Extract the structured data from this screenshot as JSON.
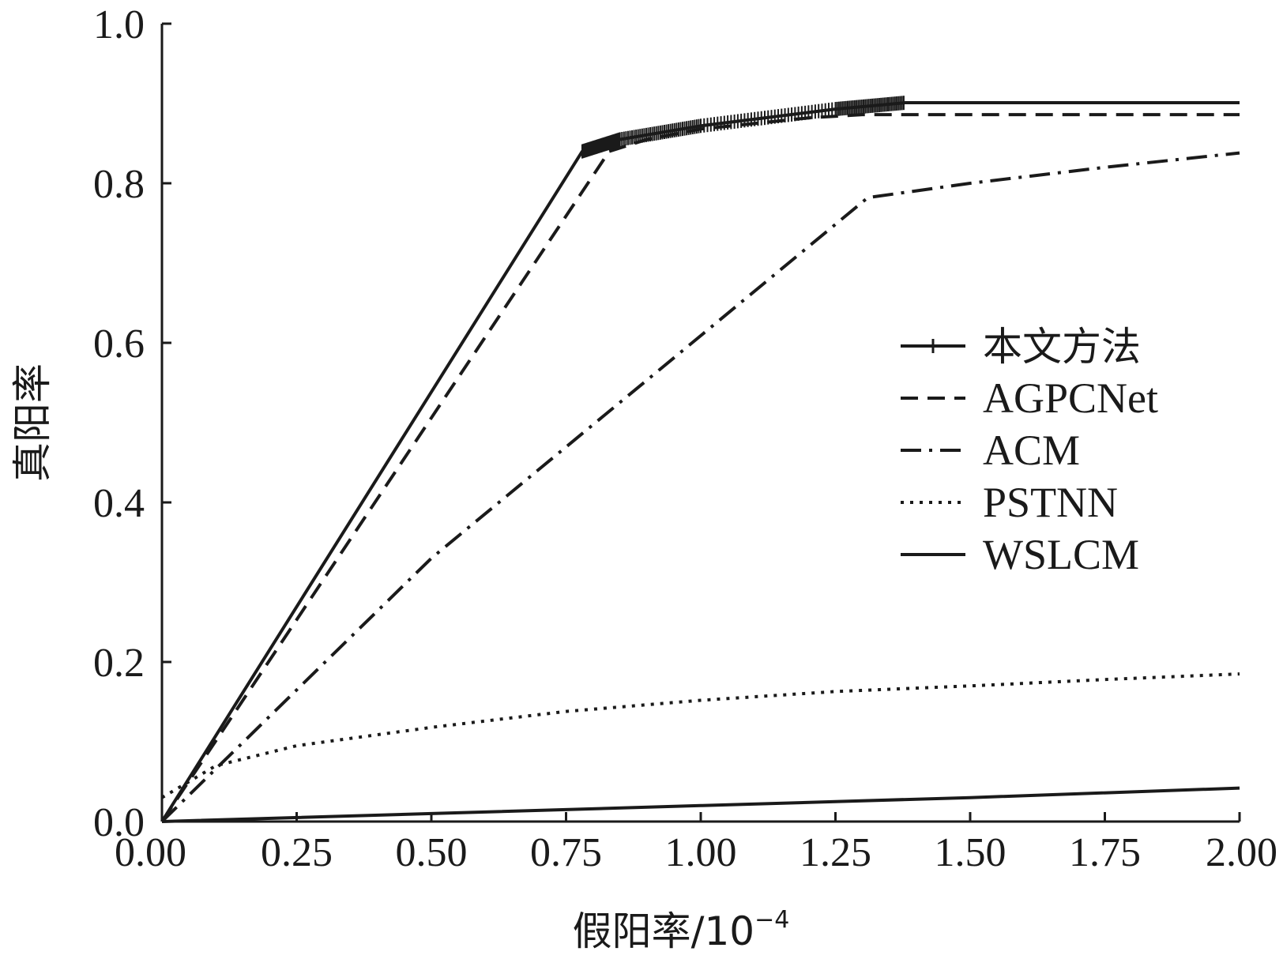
{
  "chart_data": {
    "type": "line",
    "title": "",
    "xlabel": "假阳率/10",
    "xlabel_sup": "−4",
    "ylabel": "真阳率",
    "xlim": [
      0,
      2.0
    ],
    "ylim": [
      0,
      1.0
    ],
    "x_ticks": [
      "0.00",
      "0.25",
      "0.50",
      "0.75",
      "1.00",
      "1.25",
      "1.50",
      "1.75",
      "2.00"
    ],
    "y_ticks": [
      "0.0",
      "0.2",
      "0.4",
      "0.6",
      "0.8",
      "1.0"
    ],
    "grid": false,
    "legend_position": "center-right",
    "series": [
      {
        "name": "本文方法",
        "style": "solid-marker",
        "color": "#1a1a1a",
        "points": [
          [
            0,
            0
          ],
          [
            0.78,
            0.84
          ],
          [
            0.85,
            0.855
          ],
          [
            1.0,
            0.872
          ],
          [
            1.25,
            0.893
          ],
          [
            1.38,
            0.901
          ],
          [
            2.0,
            0.901
          ]
        ]
      },
      {
        "name": "AGPCNet",
        "style": "dashed",
        "color": "#1a1a1a",
        "points": [
          [
            0,
            0
          ],
          [
            0.83,
            0.84
          ],
          [
            0.9,
            0.855
          ],
          [
            1.0,
            0.868
          ],
          [
            1.2,
            0.882
          ],
          [
            1.3,
            0.886
          ],
          [
            2.0,
            0.886
          ]
        ]
      },
      {
        "name": "ACM",
        "style": "dashdot",
        "color": "#1a1a1a",
        "points": [
          [
            0,
            0
          ],
          [
            0.5,
            0.33
          ],
          [
            1.31,
            0.782
          ],
          [
            1.5,
            0.8
          ],
          [
            1.75,
            0.82
          ],
          [
            2.0,
            0.838
          ]
        ]
      },
      {
        "name": "PSTNN",
        "style": "dotted",
        "color": "#1a1a1a",
        "points": [
          [
            0,
            0.03
          ],
          [
            0.05,
            0.05
          ],
          [
            0.1,
            0.07
          ],
          [
            0.25,
            0.095
          ],
          [
            0.5,
            0.118
          ],
          [
            0.75,
            0.138
          ],
          [
            1.0,
            0.152
          ],
          [
            1.25,
            0.163
          ],
          [
            1.5,
            0.17
          ],
          [
            1.75,
            0.178
          ],
          [
            2.0,
            0.185
          ]
        ]
      },
      {
        "name": "WSLCM",
        "style": "solid",
        "color": "#1a1a1a",
        "points": [
          [
            0,
            0
          ],
          [
            0.5,
            0.01
          ],
          [
            1.0,
            0.02
          ],
          [
            1.5,
            0.03
          ],
          [
            2.0,
            0.042
          ]
        ]
      }
    ]
  }
}
